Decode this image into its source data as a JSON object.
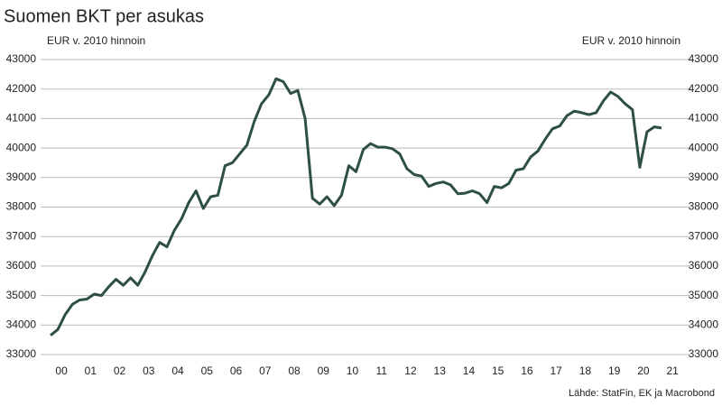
{
  "chart_data": {
    "type": "line",
    "title": "Suomen BKT per asukas",
    "y_label": "EUR v. 2010 hinnoin",
    "y2_label": "EUR v. 2010 hinnoin",
    "source": "Lähde: StatFin, EK ja Macrobond",
    "categories": [
      "00",
      null,
      null,
      null,
      "01",
      null,
      null,
      null,
      "02",
      null,
      null,
      null,
      "03",
      null,
      null,
      null,
      "04",
      null,
      null,
      null,
      "05",
      null,
      null,
      null,
      "06",
      null,
      null,
      null,
      "07",
      null,
      null,
      null,
      "08",
      null,
      null,
      null,
      "09",
      null,
      null,
      null,
      "10",
      null,
      null,
      null,
      "11",
      null,
      null,
      null,
      "12",
      null,
      null,
      null,
      "13",
      null,
      null,
      null,
      "14",
      null,
      null,
      null,
      "15",
      null,
      null,
      null,
      "16",
      null,
      null,
      null,
      "17",
      null,
      null,
      null,
      "18",
      null,
      null,
      null,
      "19",
      null,
      null,
      null,
      "20",
      null,
      null,
      null,
      "21"
    ],
    "series": [
      {
        "color": "#2e4f43",
        "values": [
          33650,
          33850,
          34350,
          34700,
          34850,
          34880,
          35050,
          35000,
          35300,
          35550,
          35350,
          35600,
          35350,
          35800,
          36350,
          36800,
          36650,
          37200,
          37600,
          38150,
          38550,
          37950,
          38350,
          38400,
          39400,
          39500,
          39800,
          40100,
          40900,
          41500,
          41800,
          42350,
          42250,
          41850,
          41950,
          41000,
          38300,
          38100,
          38350,
          38050,
          38400,
          39400,
          39200,
          39950,
          40150,
          40030,
          40030,
          39980,
          39800,
          39300,
          39100,
          39050,
          38700,
          38800,
          38850,
          38750,
          38450,
          38470,
          38550,
          38450,
          38150,
          38700,
          38650,
          38800,
          39250,
          39300,
          39700,
          39900,
          40300,
          40650,
          40750,
          41100,
          41250,
          41200,
          41130,
          41200,
          41600,
          41900,
          41750,
          41500,
          41300,
          39350,
          40550,
          40720,
          40680
        ]
      }
    ],
    "ylim": [
      33000,
      43000
    ],
    "yticks": [
      33000,
      34000,
      35000,
      36000,
      37000,
      38000,
      39000,
      40000,
      41000,
      42000,
      43000
    ],
    "y2lim": [
      33000,
      43000
    ],
    "y2ticks": [
      33000,
      34000,
      35000,
      36000,
      37000,
      38000,
      39000,
      40000,
      41000,
      42000,
      43000
    ],
    "grid": true
  }
}
